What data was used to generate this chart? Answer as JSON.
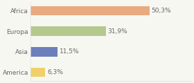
{
  "categories": [
    "Africa",
    "Europa",
    "Asia",
    "America"
  ],
  "values": [
    50.3,
    31.9,
    11.5,
    6.3
  ],
  "labels": [
    "50,3%",
    "31,9%",
    "11,5%",
    "6,3%"
  ],
  "bar_colors": [
    "#e8aa7e",
    "#b5c98e",
    "#6c7fbc",
    "#f0d06a"
  ],
  "background_color": "#f7f7f2",
  "text_color": "#666666",
  "label_fontsize": 6.5,
  "tick_fontsize": 6.5,
  "bar_height": 0.45,
  "xlim": 68
}
